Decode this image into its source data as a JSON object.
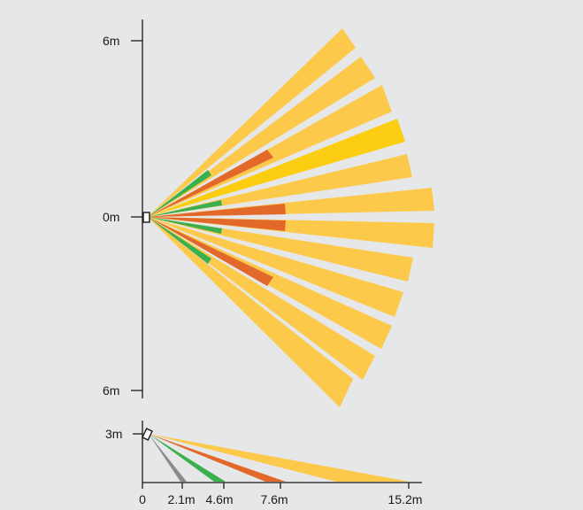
{
  "colors": {
    "background": "#e6e7e8",
    "beam_light": "#fdc94a",
    "beam_strong": "#fccd10",
    "beam_orange": "#e2692a",
    "beam_green": "#3aaf4e",
    "beam_grey": "#8c8c8c",
    "axis": "#1a1a1a"
  },
  "top_view": {
    "labels": {
      "top": "6m",
      "center": "0m",
      "bottom": "6m"
    }
  },
  "side_view": {
    "height_label": "3m",
    "distance_labels": [
      "0",
      "2.1m",
      "4.6m",
      "7.6m",
      "15.2m"
    ]
  }
}
